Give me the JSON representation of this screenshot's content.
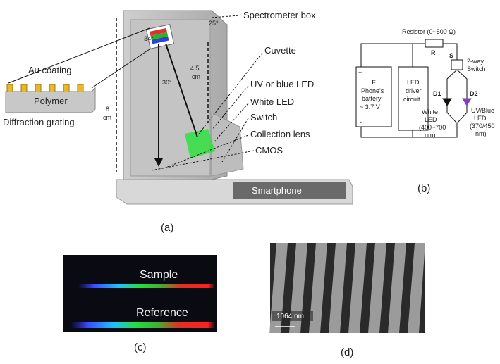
{
  "panel_a": {
    "caption": "(a)",
    "spectrometer_box": "Spectrometer box",
    "angle_top": "25°",
    "angle_grating": "34°",
    "au_coating": "Au coating",
    "polymer": "Polymer",
    "grating": "Diffraction grating",
    "height_total": [
      "8",
      "cm"
    ],
    "height_upper": [
      "4.5",
      "cm"
    ],
    "angle_beam": "30°",
    "cuvette": "Cuvette",
    "uv_led": "UV or blue LED",
    "white_led": "White LED",
    "switch": "Switch",
    "lens": "Collection lens",
    "cmos": "CMOS",
    "phone": "Smartphone"
  },
  "panel_b": {
    "caption": "(b)",
    "resistor": "Resistor (0~500 Ω)",
    "r": "R",
    "s": "S",
    "two_way_switch": [
      "2-way",
      "Switch"
    ],
    "e": "E",
    "battery": [
      "Phone's",
      "battery",
      "~ 3.7 V"
    ],
    "plus": "+",
    "minus": "-",
    "driver": [
      "LED",
      "driver",
      "circuit"
    ],
    "d1": "D1",
    "d2": "D2",
    "white_led": [
      "White",
      "LED",
      "(400~700",
      "nm)"
    ],
    "uv_led": [
      "UV/Blue",
      "LED",
      "(370/450",
      "nm)"
    ]
  },
  "panel_c": {
    "caption": "(c)",
    "sample": "Sample",
    "reference": "Reference"
  },
  "panel_d": {
    "caption": "(d)",
    "scale": "1064 nm"
  }
}
